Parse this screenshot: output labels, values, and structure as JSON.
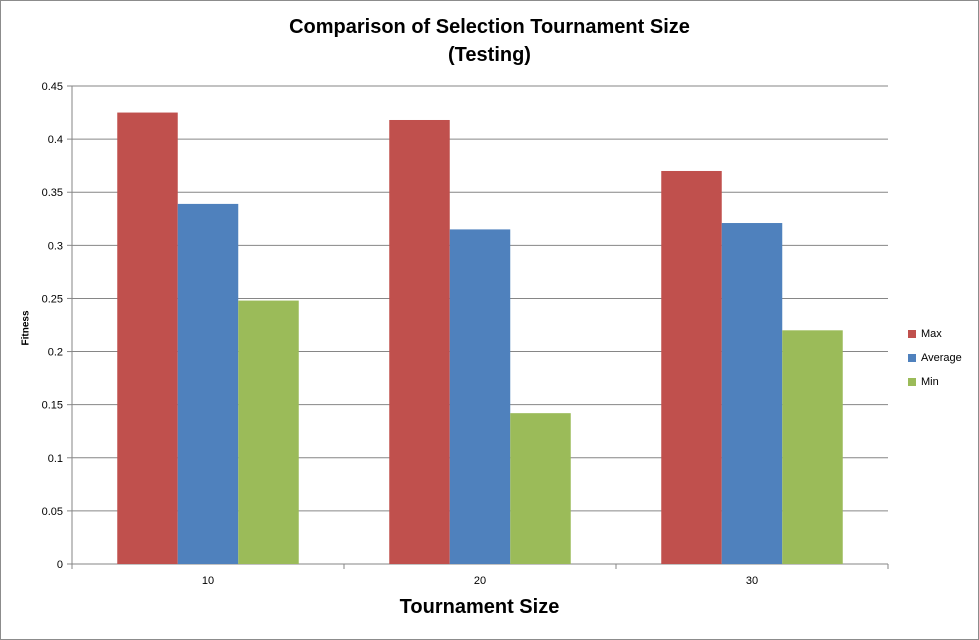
{
  "chart_data": {
    "type": "bar",
    "title_lines": [
      "Comparison of Selection Tournament Size",
      "(Testing)"
    ],
    "xlabel": "Tournament Size",
    "ylabel": "Fitness",
    "categories": [
      "10",
      "20",
      "30"
    ],
    "series": [
      {
        "name": "Max",
        "color": "#c0504d",
        "values": [
          0.425,
          0.418,
          0.37
        ]
      },
      {
        "name": "Average",
        "color": "#4f81bd",
        "values": [
          0.339,
          0.315,
          0.321
        ]
      },
      {
        "name": "Min",
        "color": "#9bbb59",
        "values": [
          0.248,
          0.142,
          0.22
        ]
      }
    ],
    "ylim": [
      0,
      0.45
    ],
    "yticks": [
      "0",
      "0.05",
      "0.1",
      "0.15",
      "0.2",
      "0.25",
      "0.3",
      "0.35",
      "0.4",
      "0.45"
    ],
    "grid": true,
    "legend_position": "right"
  }
}
